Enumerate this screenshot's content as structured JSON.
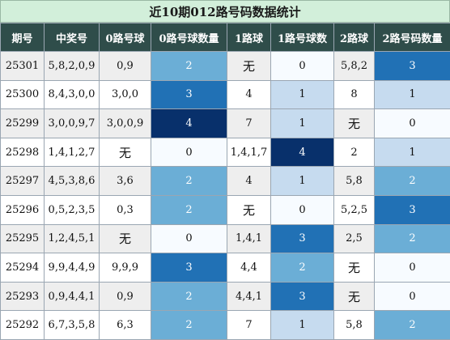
{
  "title": "近10期012路号码数据统计",
  "headers": [
    "期号",
    "中奖号",
    "0路号球",
    "0路号球数量",
    "1路球",
    "1路号球数",
    "2路球",
    "2路号码数量"
  ],
  "colors": {
    "header_bg": "#2f4d4a",
    "title_bg": "#d2efda",
    "count_0": "#f7fbff",
    "count_1": "#c6dbef",
    "count_2": "#6baed6",
    "count_3": "#2171b5",
    "count_4": "#08306b"
  },
  "rows": [
    {
      "issue": "25301",
      "number": "5,8,2,0,9",
      "r0": "0,9",
      "c0": 2,
      "r1": "无",
      "c1": 0,
      "r2": "5,8,2",
      "c2": 3
    },
    {
      "issue": "25300",
      "number": "8,4,3,0,0",
      "r0": "3,0,0",
      "c0": 3,
      "r1": "4",
      "c1": 1,
      "r2": "8",
      "c2": 1
    },
    {
      "issue": "25299",
      "number": "3,0,0,9,7",
      "r0": "3,0,0,9",
      "c0": 4,
      "r1": "7",
      "c1": 1,
      "r2": "无",
      "c2": 0
    },
    {
      "issue": "25298",
      "number": "1,4,1,2,7",
      "r0": "无",
      "c0": 0,
      "r1": "1,4,1,7",
      "c1": 4,
      "r2": "2",
      "c2": 1
    },
    {
      "issue": "25297",
      "number": "4,5,3,8,6",
      "r0": "3,6",
      "c0": 2,
      "r1": "4",
      "c1": 1,
      "r2": "5,8",
      "c2": 2
    },
    {
      "issue": "25296",
      "number": "0,5,2,3,5",
      "r0": "0,3",
      "c0": 2,
      "r1": "无",
      "c1": 0,
      "r2": "5,2,5",
      "c2": 3
    },
    {
      "issue": "25295",
      "number": "1,2,4,5,1",
      "r0": "无",
      "c0": 0,
      "r1": "1,4,1",
      "c1": 3,
      "r2": "2,5",
      "c2": 2
    },
    {
      "issue": "25294",
      "number": "9,9,4,4,9",
      "r0": "9,9,9",
      "c0": 3,
      "r1": "4,4",
      "c1": 2,
      "r2": "无",
      "c2": 0
    },
    {
      "issue": "25293",
      "number": "0,9,4,4,1",
      "r0": "0,9",
      "c0": 2,
      "r1": "4,4,1",
      "c1": 3,
      "r2": "无",
      "c2": 0
    },
    {
      "issue": "25292",
      "number": "6,7,3,5,8",
      "r0": "6,3",
      "c0": 2,
      "r1": "7",
      "c1": 1,
      "r2": "5,8",
      "c2": 2
    }
  ]
}
